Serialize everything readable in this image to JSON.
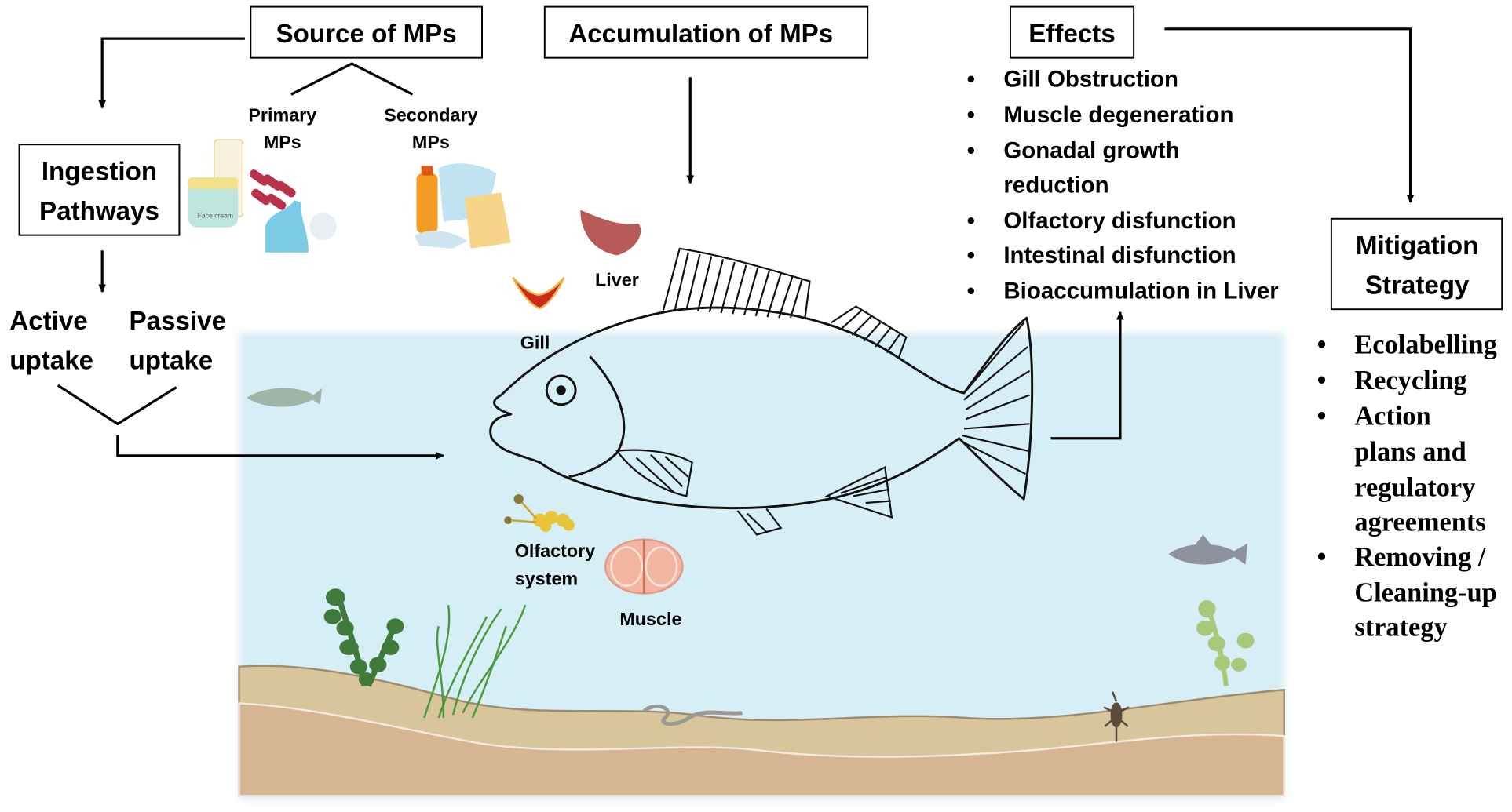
{
  "boxes": {
    "source": "Source of MPs",
    "accumulation": "Accumulation of MPs",
    "effects": "Effects",
    "ingestion": [
      "Ingestion",
      "Pathways"
    ],
    "mitigation": [
      "Mitigation",
      "Strategy"
    ]
  },
  "source_types": {
    "primary": [
      "Primary",
      "MPs"
    ],
    "secondary": [
      "Secondary",
      "MPs"
    ]
  },
  "uptake": {
    "active": [
      "Active",
      "uptake"
    ],
    "passive": [
      "Passive",
      "uptake"
    ]
  },
  "organs": {
    "gill": "Gill",
    "liver": "Liver",
    "olfactory": [
      "Olfactory",
      "system"
    ],
    "muscle": "Muscle"
  },
  "effects_list": [
    "Gill Obstruction",
    "Muscle degeneration",
    "Gonadal growth",
    "reduction",
    "Olfactory disfunction",
    "Intestinal disfunction",
    "Bioaccumulation in Liver"
  ],
  "mitigation_list": [
    "Ecolabelling",
    "Recycling",
    "Action",
    "plans and",
    "regulatory",
    "agreements",
    "Removing /",
    "Cleaning-up",
    "strategy"
  ],
  "product_label": "Face cream",
  "colors": {
    "water": "#d6eef5",
    "sand_top": "#d9c59b",
    "sand_bottom": "#d6b593",
    "plant_dark": "#3f7a3a",
    "plant_light": "#a9c97a"
  }
}
